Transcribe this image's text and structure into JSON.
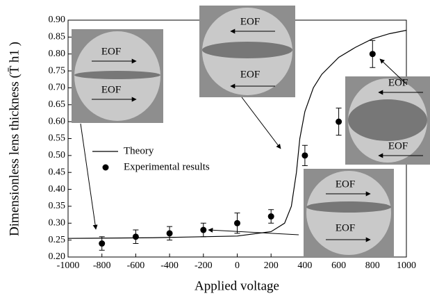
{
  "chart_data": {
    "type": "line",
    "xlabel": "Applied voltage",
    "ylabel": "Dimensionless lens thickness (T̄ h1 )",
    "xlim": [
      -1000,
      1000
    ],
    "xticks": [
      -1000,
      -800,
      -600,
      -400,
      -200,
      0,
      200,
      400,
      600,
      800,
      1000
    ],
    "ylim": [
      0.2,
      0.9
    ],
    "yticks": [
      {
        "value": 0.2,
        "label": "0.20"
      },
      0.25,
      {
        "value": 0.3,
        "label": "0.30"
      },
      0.35,
      {
        "value": 0.4,
        "label": "0.40"
      },
      0.45,
      {
        "value": 0.5,
        "label": "0.50"
      },
      0.55,
      {
        "value": 0.6,
        "label": "0.60"
      },
      0.65,
      {
        "value": 0.7,
        "label": "0.70"
      },
      0.75,
      {
        "value": 0.8,
        "label": "0.80"
      },
      0.85,
      {
        "value": 0.9,
        "label": "0.90"
      }
    ],
    "series": [
      {
        "name": "Theory",
        "type": "line",
        "color": "#000000",
        "x": [
          -1000,
          -500,
          0,
          200,
          280,
          320,
          350,
          370,
          400,
          450,
          500,
          600,
          700,
          800,
          900,
          1000
        ],
        "values": [
          0.255,
          0.257,
          0.262,
          0.275,
          0.3,
          0.35,
          0.45,
          0.55,
          0.63,
          0.7,
          0.74,
          0.79,
          0.82,
          0.845,
          0.86,
          0.87
        ]
      },
      {
        "name": "Experimental results",
        "type": "scatter",
        "color": "#000000",
        "x": [
          -800,
          -600,
          -400,
          -200,
          0,
          200,
          400,
          600,
          800
        ],
        "values": [
          0.24,
          0.26,
          0.27,
          0.28,
          0.3,
          0.32,
          0.5,
          0.6,
          0.8
        ],
        "errors": [
          0.02,
          0.02,
          0.02,
          0.02,
          0.03,
          0.02,
          0.03,
          0.04,
          0.04
        ]
      }
    ],
    "annotations": [
      "EOF",
      "EOF",
      "EOF",
      "EOF",
      "EOF",
      "EOF",
      "EOF",
      "EOF"
    ]
  }
}
